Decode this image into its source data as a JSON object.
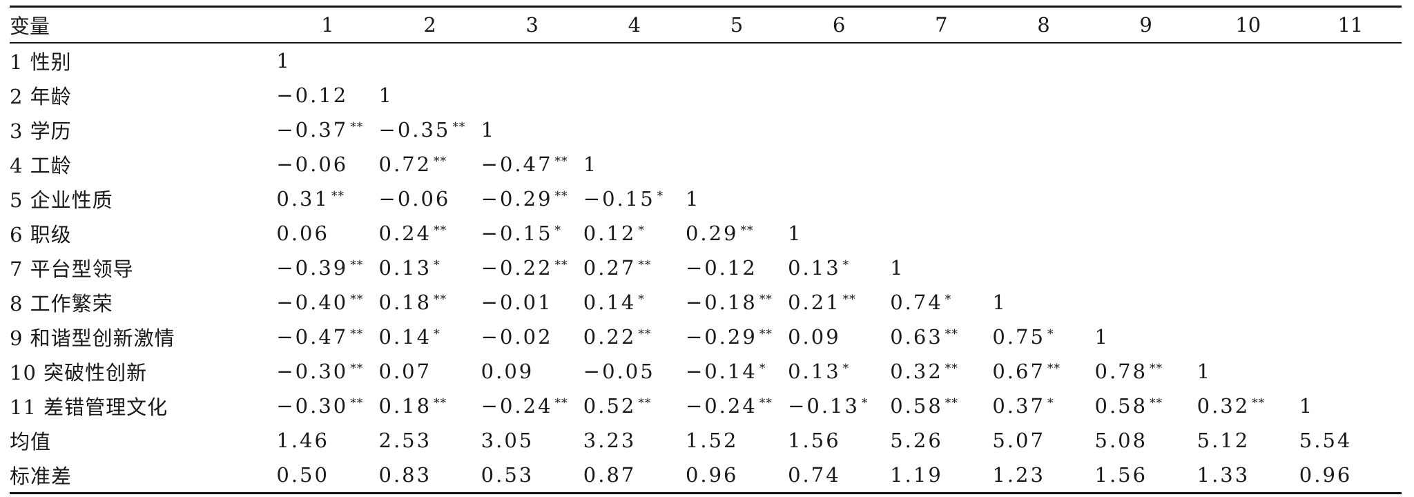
{
  "table": {
    "header": [
      "变量",
      "1",
      "2",
      "3",
      "4",
      "5",
      "6",
      "7",
      "8",
      "9",
      "10",
      "11"
    ],
    "rows": [
      {
        "label": "1 性别",
        "cells": [
          "1"
        ]
      },
      {
        "label": "2 年龄",
        "cells": [
          "−0.12",
          "1"
        ]
      },
      {
        "label": "3 学历",
        "cells": [
          "−0.37**",
          "−0.35**",
          "1"
        ]
      },
      {
        "label": "4 工龄",
        "cells": [
          "−0.06",
          "0.72**",
          "−0.47**",
          "1"
        ]
      },
      {
        "label": "5 企业性质",
        "cells": [
          "0.31**",
          "−0.06",
          "−0.29**",
          "−0.15*",
          "1"
        ]
      },
      {
        "label": "6 职级",
        "cells": [
          "0.06",
          "0.24**",
          "−0.15*",
          "0.12*",
          "0.29**",
          "1"
        ]
      },
      {
        "label": "7 平台型领导",
        "cells": [
          "−0.39**",
          "0.13*",
          "−0.22**",
          "0.27**",
          "−0.12",
          "0.13*",
          "1"
        ]
      },
      {
        "label": "8 工作繁荣",
        "cells": [
          "−0.40**",
          "0.18**",
          "−0.01",
          "0.14*",
          "−0.18**",
          "0.21**",
          "0.74*",
          "1"
        ]
      },
      {
        "label": "9 和谐型创新激情",
        "cells": [
          "−0.47**",
          "0.14*",
          "−0.02",
          "0.22**",
          "−0.29**",
          "0.09",
          "0.63**",
          "0.75*",
          "1"
        ]
      },
      {
        "label": "10 突破性创新",
        "cells": [
          "−0.30**",
          "0.07",
          "0.09",
          "−0.05",
          "−0.14*",
          "0.13*",
          "0.32**",
          "0.67**",
          "0.78**",
          "1"
        ]
      },
      {
        "label": "11 差错管理文化",
        "cells": [
          "−0.30**",
          "0.18**",
          "−0.24**",
          "0.52**",
          "−0.24**",
          "−0.13*",
          "0.58**",
          "0.37*",
          "0.58**",
          "0.32**",
          "1"
        ]
      },
      {
        "label": "均值",
        "cells": [
          "1.46",
          "2.53",
          "3.05",
          "3.23",
          "1.52",
          "1.56",
          "5.26",
          "5.07",
          "5.08",
          "5.12",
          "5.54"
        ]
      },
      {
        "label": "标准差",
        "cells": [
          "0.50",
          "0.83",
          "0.53",
          "0.87",
          "0.96",
          "0.74",
          "1.19",
          "1.23",
          "1.56",
          "1.33",
          "0.96"
        ]
      }
    ]
  }
}
